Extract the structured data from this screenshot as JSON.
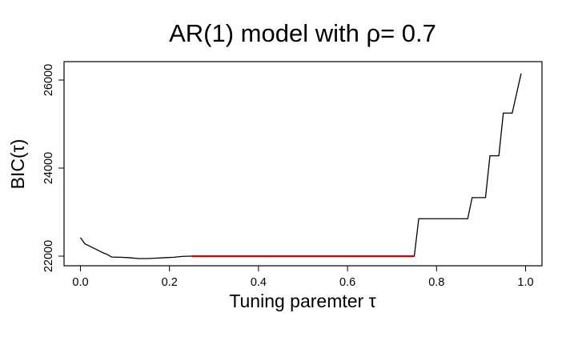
{
  "chart_data": {
    "type": "line",
    "title": "AR(1) model with ρ= 0.7",
    "xlabel": "Tuning paremter τ",
    "ylabel": "BIC(τ)",
    "xlim": [
      0.0,
      1.0
    ],
    "ylim": [
      21800,
      26300
    ],
    "x_ticks": [
      "0.0",
      "0.2",
      "0.4",
      "0.6",
      "0.8",
      "1.0"
    ],
    "y_ticks": [
      "22000",
      "24000",
      "26000"
    ],
    "grid": false,
    "legend": "none",
    "series": [
      {
        "color": "#000000",
        "points": [
          [
            0.0,
            22420
          ],
          [
            0.01,
            22280
          ],
          [
            0.02,
            22230
          ],
          [
            0.03,
            22180
          ],
          [
            0.04,
            22130
          ],
          [
            0.05,
            22080
          ],
          [
            0.06,
            22040
          ],
          [
            0.07,
            21980
          ],
          [
            0.09,
            21975
          ],
          [
            0.11,
            21965
          ],
          [
            0.13,
            21945
          ],
          [
            0.15,
            21945
          ],
          [
            0.17,
            21955
          ],
          [
            0.19,
            21965
          ],
          [
            0.21,
            21975
          ],
          [
            0.23,
            21995
          ],
          [
            0.25,
            22000
          ],
          [
            0.75,
            22000
          ],
          [
            0.76,
            22850
          ],
          [
            0.87,
            22850
          ],
          [
            0.88,
            23330
          ],
          [
            0.91,
            23330
          ],
          [
            0.92,
            24280
          ],
          [
            0.94,
            24280
          ],
          [
            0.95,
            25250
          ],
          [
            0.97,
            25250
          ],
          [
            0.99,
            26150
          ]
        ]
      },
      {
        "color": "#e00000",
        "points": [
          [
            0.25,
            22000
          ],
          [
            0.75,
            22000
          ]
        ]
      }
    ]
  }
}
